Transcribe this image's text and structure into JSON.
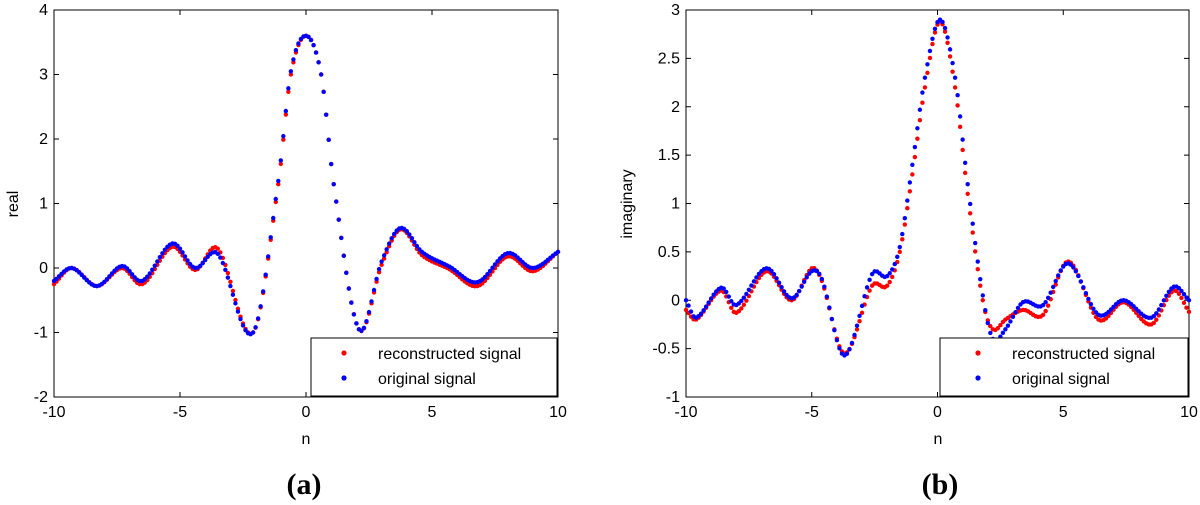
{
  "chart_data": [
    {
      "type": "scatter",
      "caption": "(a)",
      "title": "",
      "xlabel": "n",
      "ylabel": "real",
      "xlim": [
        -10,
        10
      ],
      "ylim": [
        -2,
        4
      ],
      "xticks": [
        -10,
        -5,
        0,
        5,
        10
      ],
      "yticks": [
        -2,
        -1,
        0,
        1,
        2,
        3,
        4
      ],
      "xtick_labels": [
        "-10",
        "-5",
        "0",
        "5",
        "10"
      ],
      "ytick_labels": [
        "-2",
        "-1",
        "0",
        "1",
        "2",
        "3",
        "4"
      ],
      "legend_position": "bottom-right",
      "series": [
        {
          "name": "reconstructed signal",
          "color": "#ff0000",
          "shift": 0.12,
          "x": [
            -10,
            -9.3,
            -8.3,
            -7.3,
            -6.5,
            -5.3,
            -4.4,
            -3.5,
            -2.1,
            -1.1,
            -0.6,
            0,
            0.6,
            1.1,
            2.1,
            3,
            3.75,
            4.6,
            5.7,
            6.8,
            8,
            9,
            10
          ],
          "y": [
            -0.25,
            0.0,
            -0.28,
            0.0,
            -0.25,
            0.33,
            -0.03,
            0.3,
            -1.0,
            1.3,
            3.0,
            3.6,
            3.0,
            1.3,
            -0.95,
            0.05,
            0.6,
            0.2,
            -0.02,
            -0.28,
            0.18,
            -0.05,
            0.25
          ]
        },
        {
          "name": "original signal",
          "color": "#0000ff",
          "shift": 0.0,
          "x": [
            -10,
            -9.3,
            -8.3,
            -7.3,
            -6.5,
            -5.3,
            -4.4,
            -3.5,
            -2.1,
            -1.1,
            -0.6,
            0,
            0.6,
            1.1,
            2.1,
            3,
            3.75,
            4.6,
            5.7,
            6.8,
            8,
            9,
            10
          ],
          "y": [
            -0.2,
            0.0,
            -0.28,
            0.03,
            -0.2,
            0.38,
            0.0,
            0.22,
            -1.0,
            1.35,
            3.05,
            3.6,
            3.0,
            1.3,
            -0.95,
            0.1,
            0.62,
            0.25,
            0.02,
            -0.22,
            0.23,
            0.0,
            0.25
          ]
        }
      ]
    },
    {
      "type": "scatter",
      "caption": "(b)",
      "title": "",
      "xlabel": "n",
      "ylabel": "imaginary",
      "xlim": [
        -10,
        10
      ],
      "ylim": [
        -1,
        3
      ],
      "xticks": [
        -10,
        -5,
        0,
        5,
        10
      ],
      "yticks": [
        -1,
        -0.5,
        0,
        0.5,
        1,
        1.5,
        2,
        2.5,
        3
      ],
      "xtick_labels": [
        "-10",
        "-5",
        "0",
        "5",
        "10"
      ],
      "ytick_labels": [
        "-1",
        "-0.5",
        "0",
        "0.5",
        "1",
        "1.5",
        "2",
        "2.5",
        "3"
      ],
      "legend_position": "bottom-right",
      "series": [
        {
          "name": "reconstructed signal",
          "color": "#ff0000",
          "shift": 0.12,
          "x": [
            -10,
            -9.6,
            -8.6,
            -8,
            -6.8,
            -5.8,
            -5,
            -4.6,
            -3.7,
            -2.6,
            -2.0,
            -1.5,
            -1.0,
            -0.5,
            0.1,
            0.7,
            1.2,
            1.8,
            2.2,
            2.7,
            3.4,
            4.2,
            5.2,
            6.4,
            7.4,
            8.5,
            9.4,
            10
          ],
          "y": [
            -0.1,
            -0.2,
            0.1,
            -0.13,
            0.3,
            0.0,
            0.33,
            0.2,
            -0.55,
            0.15,
            0.15,
            0.5,
            1.3,
            2.2,
            2.88,
            2.2,
            1.1,
            0.0,
            -0.3,
            -0.2,
            -0.1,
            -0.15,
            0.4,
            -0.2,
            -0.02,
            -0.25,
            0.1,
            -0.12
          ]
        },
        {
          "name": "original signal",
          "color": "#0000ff",
          "shift": 0.0,
          "x": [
            -10,
            -9.6,
            -8.6,
            -8,
            -6.8,
            -5.8,
            -5,
            -4.6,
            -3.7,
            -2.6,
            -2.0,
            -1.5,
            -1.0,
            -0.5,
            0.1,
            0.7,
            1.2,
            1.8,
            2.2,
            2.7,
            3.4,
            4.2,
            5.2,
            6.4,
            7.4,
            8.5,
            9.4,
            10
          ],
          "y": [
            0.0,
            -0.18,
            0.13,
            -0.05,
            0.33,
            0.02,
            0.3,
            0.22,
            -0.57,
            0.27,
            0.25,
            0.55,
            1.4,
            2.3,
            2.9,
            2.3,
            1.2,
            0.05,
            -0.4,
            -0.3,
            -0.02,
            -0.05,
            0.38,
            -0.15,
            0.0,
            -0.18,
            0.14,
            0.0
          ]
        }
      ]
    }
  ]
}
